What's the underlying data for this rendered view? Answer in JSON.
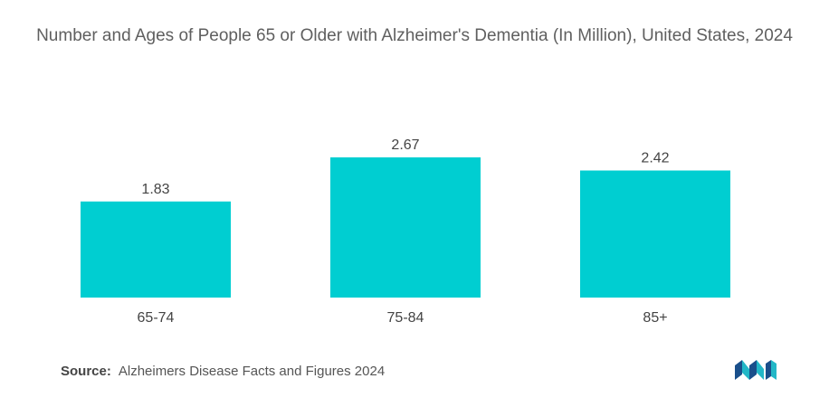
{
  "chart_data": {
    "type": "bar",
    "title": "Number and Ages of People 65 or Older with Alzheimer's Dementia (In Million), United States, 2024",
    "categories": [
      "65-74",
      "75-84",
      "85+"
    ],
    "values": [
      1.83,
      2.67,
      2.42
    ],
    "value_labels": [
      "1.83",
      "2.67",
      "2.42"
    ],
    "bar_color": "#00CED1",
    "xlabel": "",
    "ylabel": "",
    "ylim": [
      0,
      2.67
    ],
    "grid": false,
    "legend": "none"
  },
  "source": {
    "label": "Source:",
    "text": "Alzheimers Disease Facts and Figures 2024"
  },
  "logo": {
    "icon": "mordor-intelligence-logo-icon",
    "colors": [
      "#1a4f8b",
      "#22b7c7"
    ]
  }
}
